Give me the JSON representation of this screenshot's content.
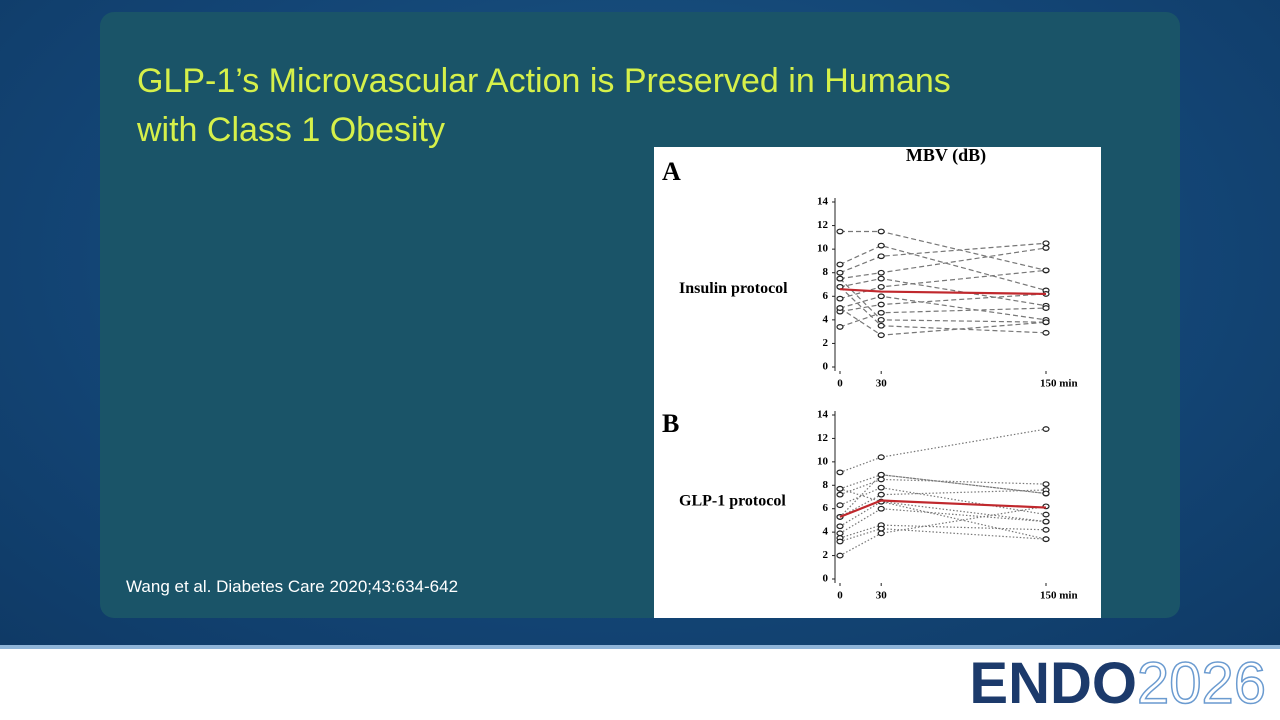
{
  "slide": {
    "title_line1": "GLP-1’s Microvascular Action is Preserved in Humans",
    "title_line2": "with Class 1 Obesity",
    "citation": "Wang et al. Diabetes Care 2020;43:634-642"
  },
  "logo": {
    "left": "ENDO",
    "right": "2026"
  },
  "chart_data": [
    {
      "type": "line",
      "title": "MBV (dB)",
      "panel": "A",
      "ylabel": "Insulin protocol",
      "x": [
        0,
        30,
        150
      ],
      "xlim": [
        0,
        150
      ],
      "xticks": [
        0,
        30,
        {
          "value": 150,
          "label": "150 min"
        }
      ],
      "ylim": [
        0,
        14
      ],
      "yticks": [
        0,
        2,
        4,
        6,
        8,
        10,
        12,
        14
      ],
      "line_style": "dashed",
      "series": [
        {
          "color": "#777777",
          "values": [
            11.5,
            11.5,
            8.2
          ]
        },
        {
          "color": "#777777",
          "values": [
            8.7,
            10.3,
            6.5
          ]
        },
        {
          "color": "#777777",
          "values": [
            8,
            9.4,
            10.5
          ]
        },
        {
          "color": "#777777",
          "values": [
            7.5,
            8,
            10.1
          ]
        },
        {
          "color": "#777777",
          "values": [
            6.8,
            7.5,
            5.2
          ]
        },
        {
          "color": "#777777",
          "values": [
            5.8,
            6.8,
            8.2
          ]
        },
        {
          "color": "#777777",
          "values": [
            5,
            6,
            4
          ]
        },
        {
          "color": "#777777",
          "values": [
            4.7,
            5.3,
            6.2
          ]
        },
        {
          "color": "#777777",
          "values": [
            3.4,
            4.6,
            5
          ]
        },
        {
          "color": "#777777",
          "values": [
            7.5,
            4,
            3.8
          ]
        },
        {
          "color": "#777777",
          "values": [
            6.8,
            3.5,
            2.9
          ]
        },
        {
          "color": "#777777",
          "values": [
            5,
            2.7,
            3.8
          ]
        },
        {
          "color": "#c0282d",
          "values": [
            6.6,
            6.4,
            6.2
          ],
          "mean": true
        }
      ]
    },
    {
      "type": "line",
      "panel": "B",
      "ylabel": "GLP-1 protocol",
      "x": [
        0,
        30,
        150
      ],
      "xlim": [
        0,
        150
      ],
      "xticks": [
        0,
        30,
        {
          "value": 150,
          "label": "150 min"
        }
      ],
      "ylim": [
        0,
        14
      ],
      "yticks": [
        0,
        2,
        4,
        6,
        8,
        10,
        12,
        14
      ],
      "line_style": "dotted",
      "series": [
        {
          "color": "#777777",
          "values": [
            9.1,
            10.4,
            12.8
          ]
        },
        {
          "color": "#777777",
          "values": [
            7.7,
            8.9,
            7.3
          ]
        },
        {
          "color": "#777777",
          "values": [
            7.2,
            8.5,
            8.1
          ]
        },
        {
          "color": "#777777",
          "values": [
            6.3,
            7.8,
            5.5
          ]
        },
        {
          "color": "#777777",
          "values": [
            5.3,
            7.2,
            7.6
          ]
        },
        {
          "color": "#777777",
          "values": [
            4.5,
            6.6,
            3.4
          ]
        },
        {
          "color": "#777777",
          "values": [
            3.9,
            6,
            4.9
          ]
        },
        {
          "color": "#777777",
          "values": [
            3.5,
            4.6,
            4.2
          ]
        },
        {
          "color": "#777777",
          "values": [
            3.2,
            4.3,
            3.4
          ]
        },
        {
          "color": "#777777",
          "values": [
            2,
            3.9,
            6.2
          ]
        },
        {
          "color": "#777777",
          "values": [
            7.7,
            6.6,
            4.9
          ]
        },
        {
          "color": "#777777",
          "values": [
            5.3,
            8.9,
            7.3
          ]
        },
        {
          "color": "#c0282d",
          "values": [
            5.3,
            6.7,
            6.1
          ],
          "mean": true
        }
      ]
    }
  ]
}
